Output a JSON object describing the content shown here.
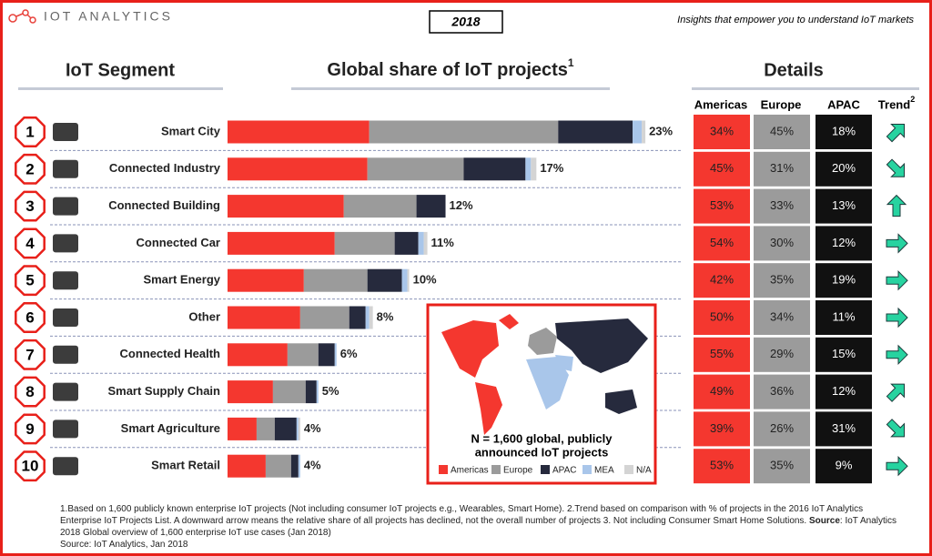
{
  "header": {
    "logo": "IOT ANALYTICS",
    "year": "2018",
    "tagline": "Insights that empower you to understand IoT markets",
    "segment_heading": "IoT Segment",
    "share_heading": "Global share of IoT projects",
    "share_note": "1",
    "details_heading": "Details"
  },
  "chart_data": {
    "type": "stacked-bar",
    "ranks": [
      1,
      2,
      3,
      4,
      5,
      6,
      7,
      8,
      9,
      10
    ],
    "categories": [
      "Smart City",
      "Connected Industry",
      "Connected Building",
      "Connected Car",
      "Smart Energy",
      "Other",
      "Connected Health",
      "Smart Supply Chain",
      "Smart Agriculture",
      "Smart Retail"
    ],
    "totals": [
      23,
      17,
      12,
      11,
      10,
      8,
      6,
      5,
      4,
      4
    ],
    "total_labels": [
      "23%",
      "17%",
      "12%",
      "11%",
      "10%",
      "8%",
      "6%",
      "5%",
      "4%",
      "4%"
    ],
    "series": [
      {
        "name": "Americas",
        "color": "#f4372f",
        "values": [
          7.8,
          7.7,
          6.4,
          5.9,
          4.2,
          4.0,
          3.3,
          2.5,
          1.6,
          2.1
        ]
      },
      {
        "name": "Europe",
        "color": "#9b9b9b",
        "values": [
          10.4,
          5.3,
          4.0,
          3.3,
          3.5,
          2.7,
          1.7,
          1.8,
          1.0,
          1.4
        ]
      },
      {
        "name": "APAC",
        "color": "#262a3d",
        "values": [
          4.1,
          3.4,
          1.6,
          1.3,
          1.9,
          0.9,
          0.9,
          0.6,
          1.2,
          0.4
        ]
      },
      {
        "name": "MEA",
        "color": "#a9c6ea",
        "values": [
          0.5,
          0.3,
          0,
          0.3,
          0.3,
          0.2,
          0.1,
          0.1,
          0.1,
          0.1
        ]
      },
      {
        "name": "N/A",
        "color": "#d4d4d4",
        "values": [
          0.2,
          0.3,
          0,
          0.2,
          0.1,
          0.2,
          0,
          0,
          0.1,
          0
        ]
      }
    ]
  },
  "map": {
    "caption": [
      "N = 1,600 global, publicly",
      "announced IoT projects"
    ]
  },
  "details": {
    "columns": [
      "Americas",
      "Europe",
      "APAC",
      "Trend"
    ],
    "trend_note": "2",
    "rows": [
      [
        "34%",
        "45%",
        "18%"
      ],
      [
        "45%",
        "31%",
        "20%"
      ],
      [
        "53%",
        "33%",
        "13%"
      ],
      [
        "54%",
        "30%",
        "12%"
      ],
      [
        "42%",
        "35%",
        "19%"
      ],
      [
        "50%",
        "34%",
        "11%"
      ],
      [
        "55%",
        "29%",
        "15%"
      ],
      [
        "49%",
        "36%",
        "12%"
      ],
      [
        "39%",
        "26%",
        "31%"
      ],
      [
        "53%",
        "35%",
        "9%"
      ]
    ]
  },
  "footnote": {
    "text": "1.Based on 1,600 publicly known enterprise IoT projects (Not including consumer IoT projects e.g., Wearables, Smart Home). 2.Trend based on comparison with % of projects in the 2016 IoT Analytics Enterprise IoT Projects List. A downward arrow  means the relative share of all projects has declined, not the overall number of projects 3. Not including Consumer Smart Home Solutions.",
    "source_label": "Source",
    "source_text": ": IoT Analytics 2018 Global overview of 1,600 enterprise IoT use cases (Jan 2018)",
    "credit": "Source: IoT Analytics, Jan 2018"
  }
}
